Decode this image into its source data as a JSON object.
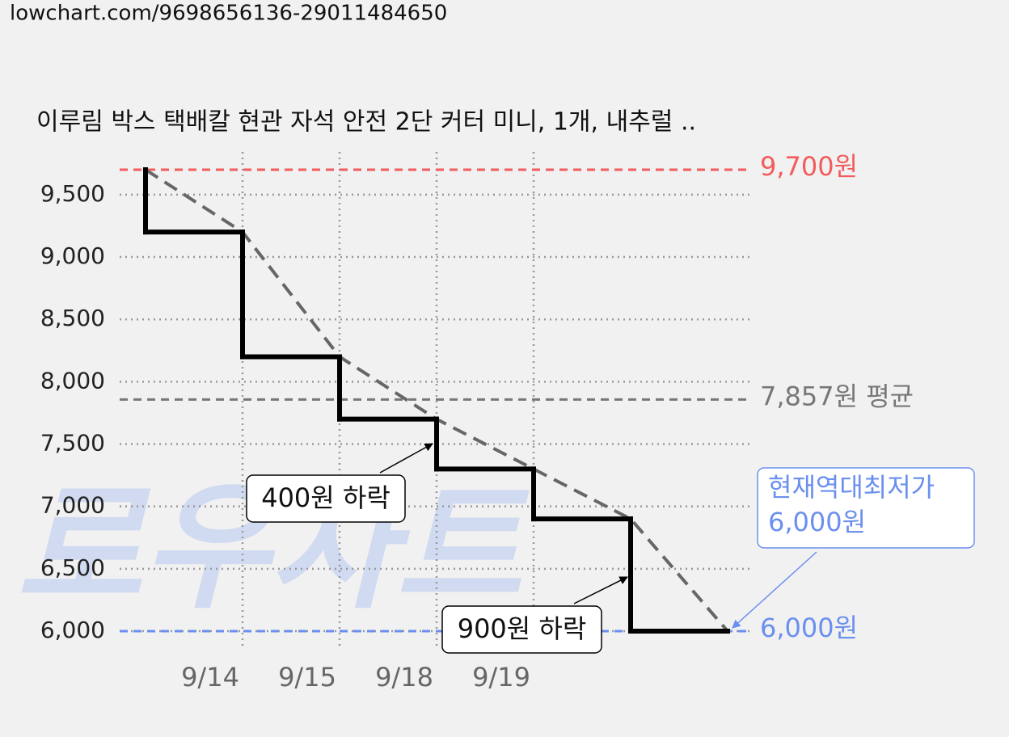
{
  "url": "lowchart.com/9698656136-29011484650",
  "watermark": "로우차트",
  "chart_data": {
    "type": "step",
    "title": "이루림 박스 택배칼 현관 자석 안전 2단 커터 미니, 1개, 내추럴 ..",
    "categories": [
      null,
      "9/14",
      "9/15",
      "9/18",
      "9/19",
      null,
      null
    ],
    "values": [
      9700,
      9200,
      8200,
      7700,
      7300,
      6900,
      6000
    ],
    "color": "#000000",
    "trend_color": "#666666",
    "ylim": [
      6000,
      9700
    ],
    "yticks": [
      {
        "value": 6000,
        "label": "6,000"
      },
      {
        "value": 6500,
        "label": "6,500"
      },
      {
        "value": 7000,
        "label": "7,000"
      },
      {
        "value": 7500,
        "label": "7,500"
      },
      {
        "value": 8000,
        "label": "8,000"
      },
      {
        "value": 8500,
        "label": "8,500"
      },
      {
        "value": 9000,
        "label": "9,000"
      },
      {
        "value": 9500,
        "label": "9,500"
      }
    ],
    "grid": true,
    "reference_lines": [
      {
        "value": 9700,
        "label": "9,700원",
        "color": "#f25c5c"
      },
      {
        "value": 7857,
        "label": "7,857원 평균",
        "color": "#777777"
      },
      {
        "value": 6000,
        "label": "6,000원",
        "color": "#6a8ff0"
      }
    ],
    "annotations": [
      {
        "lines": [
          "400원 하락"
        ]
      },
      {
        "lines": [
          "900원 하락"
        ]
      },
      {
        "lines": [
          "현재역대최저가",
          "6,000원"
        ],
        "color": "#6a8ff0"
      }
    ]
  }
}
